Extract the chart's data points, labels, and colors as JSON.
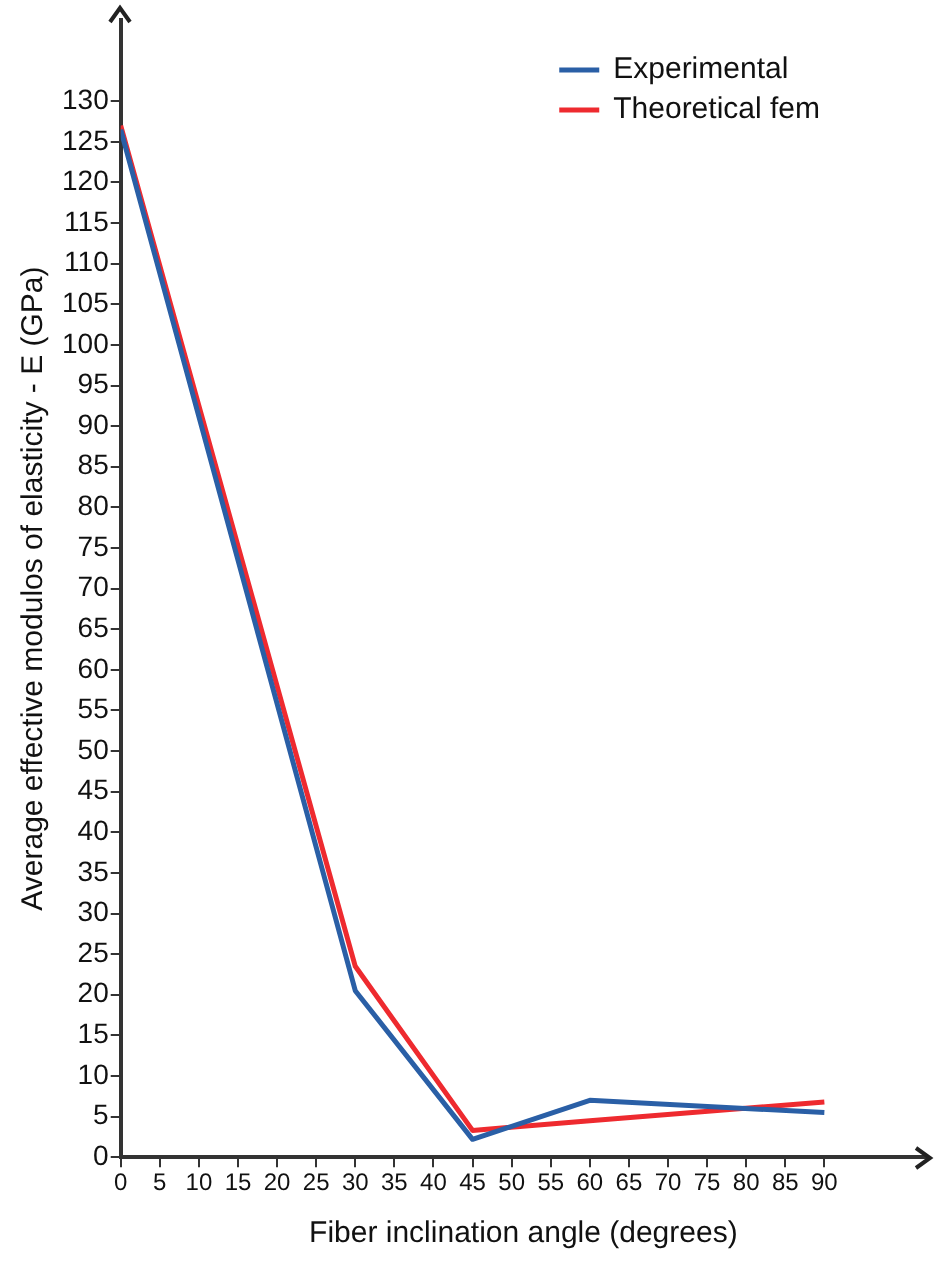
{
  "chart_data": {
    "type": "line",
    "xlabel": "Fiber inclination angle (degrees)",
    "ylabel": "Average effective modulos of elasticity - E (GPa)",
    "xlim": [
      0,
      103
    ],
    "xticks": [
      0,
      5,
      10,
      15,
      20,
      25,
      30,
      35,
      40,
      45,
      50,
      55,
      60,
      65,
      70,
      75,
      80,
      85,
      90
    ],
    "ylim": [
      0,
      140
    ],
    "yticks": [
      0,
      5,
      10,
      15,
      20,
      25,
      30,
      35,
      40,
      45,
      50,
      55,
      60,
      65,
      70,
      75,
      80,
      85,
      90,
      95,
      100,
      105,
      110,
      115,
      120,
      125,
      130
    ],
    "grid": false,
    "legend": "top right",
    "marker": "none",
    "line_style": "solid",
    "series": [
      {
        "name": "Experimental",
        "color": "#2a5fa6",
        "x": [
          0,
          30,
          45,
          60,
          90
        ],
        "values": [
          126.5,
          20.5,
          2.2,
          7,
          5.5
        ]
      },
      {
        "name": "Theoretical fem",
        "color": "#ee2a2f",
        "x": [
          0,
          30,
          45,
          60,
          90
        ],
        "values": [
          127,
          23.5,
          3.3,
          4.5,
          6.8
        ]
      }
    ]
  }
}
